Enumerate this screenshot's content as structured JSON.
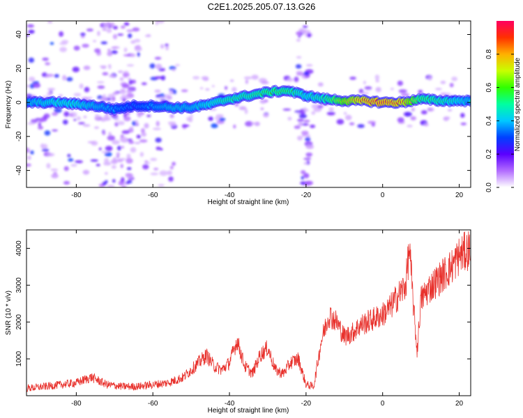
{
  "title": "C2E1.2025.205.07.13.G26",
  "chart_data": [
    {
      "type": "heatmap",
      "xlabel": "Height of straight line (km)",
      "ylabel": "Frequency (Hz)",
      "xlim": [
        -93,
        23
      ],
      "ylim": [
        -50,
        48
      ],
      "xticks": [
        -80,
        -60,
        -40,
        -20,
        0,
        20
      ],
      "yticks": [
        -40,
        -20,
        0,
        20,
        40
      ],
      "colorbar": {
        "label": "Normalized spectral amplitude",
        "ticks": [
          0.0,
          0.2,
          0.4,
          0.6,
          0.8
        ],
        "range": [
          0,
          1
        ]
      },
      "ridge": {
        "description_values": "dominant frequency ridge (Hz) vs height (km)",
        "x": [
          -93,
          -85,
          -80,
          -75,
          -70,
          -65,
          -60,
          -55,
          -50,
          -45,
          -40,
          -35,
          -30,
          -25,
          -20,
          -15,
          -10,
          -5,
          0,
          5,
          10,
          15,
          20,
          23
        ],
        "y": [
          0,
          0,
          -1,
          -2,
          -4,
          -2,
          -2,
          -3,
          -3,
          -1,
          2,
          4,
          6,
          7,
          4,
          2,
          1,
          1,
          0,
          0,
          2,
          1,
          1,
          1
        ],
        "amplitude": [
          0.45,
          0.5,
          0.5,
          0.45,
          0.4,
          0.35,
          0.4,
          0.45,
          0.45,
          0.5,
          0.55,
          0.55,
          0.6,
          0.6,
          0.5,
          0.55,
          0.75,
          0.9,
          0.95,
          0.9,
          0.6,
          0.55,
          0.5,
          0.45
        ]
      }
    },
    {
      "type": "line",
      "xlabel": "Height of straight line (km)",
      "ylabel": "SNR (10 * v/v)",
      "xlim": [
        -93,
        23
      ],
      "ylim": [
        0,
        4500
      ],
      "xticks": [
        -80,
        -60,
        -40,
        -20,
        0,
        20
      ],
      "yticks": [
        1000,
        2000,
        3000,
        4000
      ],
      "color": "#e8312c",
      "series": [
        {
          "x": [
            -93,
            -88,
            -84,
            -80,
            -76,
            -74,
            -72,
            -68,
            -64,
            -60,
            -56,
            -52,
            -48,
            -46,
            -44,
            -42,
            -40,
            -38,
            -36,
            -34,
            -32,
            -30,
            -28,
            -26,
            -24,
            -22,
            -20,
            -18,
            -16,
            -14,
            -12,
            -10,
            -8,
            -6,
            -4,
            -2,
            0,
            2,
            4,
            6,
            7,
            8,
            9,
            10,
            12,
            14,
            16,
            18,
            20,
            23
          ],
          "y": [
            200,
            250,
            300,
            350,
            500,
            400,
            300,
            250,
            250,
            300,
            350,
            500,
            900,
            1100,
            800,
            700,
            900,
            1500,
            800,
            600,
            1100,
            1300,
            700,
            600,
            900,
            1000,
            300,
            250,
            1500,
            2200,
            2000,
            1600,
            1700,
            1900,
            2000,
            2100,
            2200,
            2400,
            2700,
            3000,
            4000,
            2500,
            1200,
            2600,
            2900,
            3100,
            3300,
            3500,
            3800,
            4000
          ]
        }
      ]
    }
  ]
}
